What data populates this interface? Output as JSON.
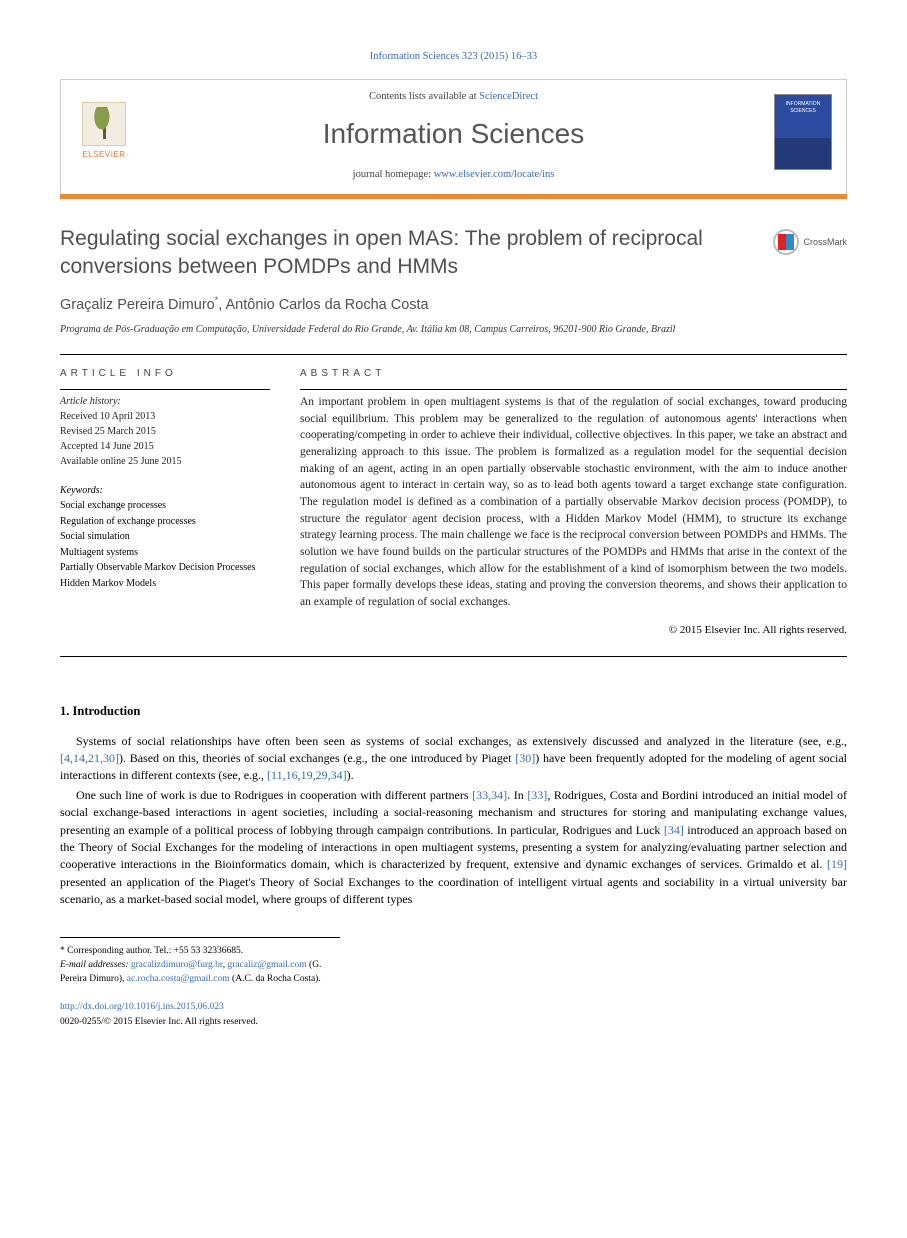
{
  "citation": "Information Sciences 323 (2015) 16–33",
  "header": {
    "contents_prefix": "Contents lists available at ",
    "contents_link": "ScienceDirect",
    "journal_name": "Information Sciences",
    "homepage_prefix": "journal homepage: ",
    "homepage_url": "www.elsevier.com/locate/ins",
    "elsevier_label": "ELSEVIER",
    "cover_title": "INFORMATION SCIENCES"
  },
  "crossmark": {
    "label": "CrossMark"
  },
  "title": "Regulating social exchanges in open MAS: The problem of reciprocal conversions between POMDPs and HMMs",
  "authors_html": "Graçaliz Pereira Dimuro*, Antônio Carlos da Rocha Costa",
  "affiliation": "Programa de Pós-Graduação em Computação, Universidade Federal do Rio Grande, Av. Itália km 08, Campus Carreiros, 96201-900 Rio Grande, Brazil",
  "article_info": {
    "head": "ARTICLE INFO",
    "history_label": "Article history:",
    "received": "Received 10 April 2013",
    "revised": "Revised 25 March 2015",
    "accepted": "Accepted 14 June 2015",
    "online": "Available online 25 June 2015",
    "keywords_label": "Keywords:",
    "keywords": [
      "Social exchange processes",
      "Regulation of exchange processes",
      "Social simulation",
      "Multiagent systems",
      "Partially Observable Markov Decision Processes",
      "Hidden Markov Models"
    ]
  },
  "abstract": {
    "head": "ABSTRACT",
    "text": "An important problem in open multiagent systems is that of the regulation of social exchanges, toward producing social equilibrium. This problem may be generalized to the regulation of autonomous agents' interactions when cooperating/competing in order to achieve their individual, collective objectives. In this paper, we take an abstract and generalizing approach to this issue. The problem is formalized as a regulation model for the sequential decision making of an agent, acting in an open partially observable stochastic environment, with the aim to induce another autonomous agent to interact in certain way, so as to lead both agents toward a target exchange state configuration. The regulation model is defined as a combination of a partially observable Markov decision process (POMDP), to structure the regulator agent decision process, with a Hidden Markov Model (HMM), to structure its exchange strategy learning process. The main challenge we face is the reciprocal conversion between POMDPs and HMMs. The solution we have found builds on the particular structures of the POMDPs and HMMs that arise in the context of the regulation of social exchanges, which allow for the establishment of a kind of isomorphism between the two models. This paper formally develops these ideas, stating and proving the conversion theorems, and shows their application to an example of regulation of social exchanges.",
    "copyright": "© 2015 Elsevier Inc. All rights reserved."
  },
  "intro": {
    "heading": "1. Introduction",
    "p1_a": "Systems of social relationships have often been seen as systems of social exchanges, as extensively discussed and analyzed in the literature (see, e.g., ",
    "p1_ref1": "[4,14,21,30]",
    "p1_b": "). Based on this, theories of social exchanges (e.g., the one introduced by Piaget ",
    "p1_ref2": "[30]",
    "p1_c": ") have been frequently adopted for the modeling of agent social interactions in different contexts (see, e.g., ",
    "p1_ref3": "[11,16,19,29,34]",
    "p1_d": ").",
    "p2_a": "One such line of work is due to Rodrigues in cooperation with different partners ",
    "p2_ref1": "[33,34]",
    "p2_b": ". In ",
    "p2_ref2": "[33]",
    "p2_c": ", Rodrigues, Costa and Bordini introduced an initial model of social exchange-based interactions in agent societies, including a social-reasoning mechanism and structures for storing and manipulating exchange values, presenting an example of a political process of lobbying through campaign contributions. In particular, Rodrigues and Luck ",
    "p2_ref3": "[34]",
    "p2_d": " introduced an approach based on the Theory of Social Exchanges for the modeling of interactions in open multiagent systems, presenting a system for analyzing/evaluating partner selection and cooperative interactions in the Bioinformatics domain, which is characterized by frequent, extensive and dynamic exchanges of services. Grimaldo et al. ",
    "p2_ref4": "[19]",
    "p2_e": " presented an application of the Piaget's Theory of Social Exchanges to the coordination of intelligent virtual agents and sociability in a virtual university bar scenario, as a market-based social model, where groups of different types"
  },
  "footnotes": {
    "corr": "* Corresponding author. Tel.: +55 53 32336685.",
    "email_label": "E-mail addresses: ",
    "email1": "gracalizdimuro@furg.br",
    "email1_sep": ", ",
    "email2": "gracaliz@gmail.com",
    "name1": " (G. Pereira Dimuro), ",
    "email3": "ac.rocha.costa@gmail.com",
    "name2": " (A.C. da Rocha Costa)."
  },
  "bottom": {
    "doi": "http://dx.doi.org/10.1016/j.ins.2015.06.023",
    "issn_line": "0020-0255/© 2015 Elsevier Inc. All rights reserved."
  },
  "colors": {
    "link": "#3a6bb5",
    "orange_bar": "#ea8938",
    "title_gray": "#505050"
  }
}
